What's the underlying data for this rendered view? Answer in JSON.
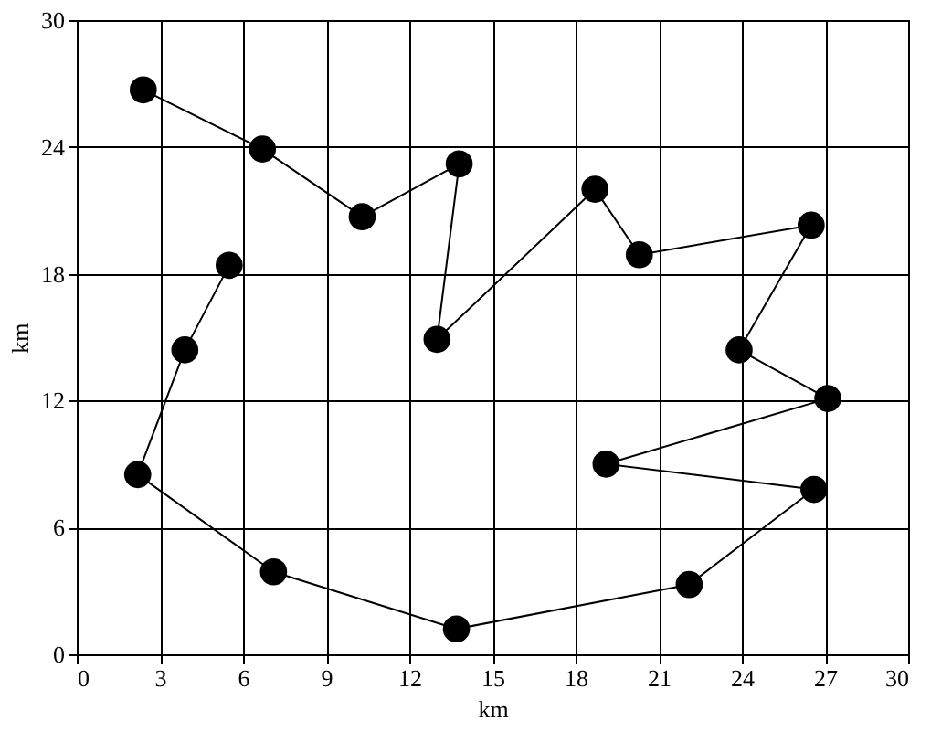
{
  "chart_data": {
    "type": "line",
    "xlabel": "km",
    "ylabel": "km",
    "marker": "circle",
    "line_style": "solid",
    "grid": true,
    "xlim": [
      0,
      30
    ],
    "xticks": [
      0,
      3,
      6,
      9,
      12,
      15,
      18,
      21,
      24,
      27,
      30
    ],
    "ylim": [
      0,
      30
    ],
    "yticks": [
      0,
      6,
      12,
      18,
      24,
      30
    ],
    "series": [
      {
        "color": "#000000",
        "x": [
          2.4,
          6.7,
          10.3,
          13.8,
          13.0,
          18.7,
          20.3,
          26.5,
          23.9,
          27.1,
          19.1,
          26.6,
          22.1,
          13.7,
          7.1,
          2.2,
          3.9,
          5.5
        ],
        "values": [
          26.7,
          23.9,
          20.7,
          23.2,
          14.9,
          22.0,
          18.9,
          20.3,
          14.4,
          12.1,
          9.0,
          7.8,
          3.3,
          1.2,
          3.9,
          8.5,
          14.4,
          18.4
        ]
      }
    ]
  }
}
